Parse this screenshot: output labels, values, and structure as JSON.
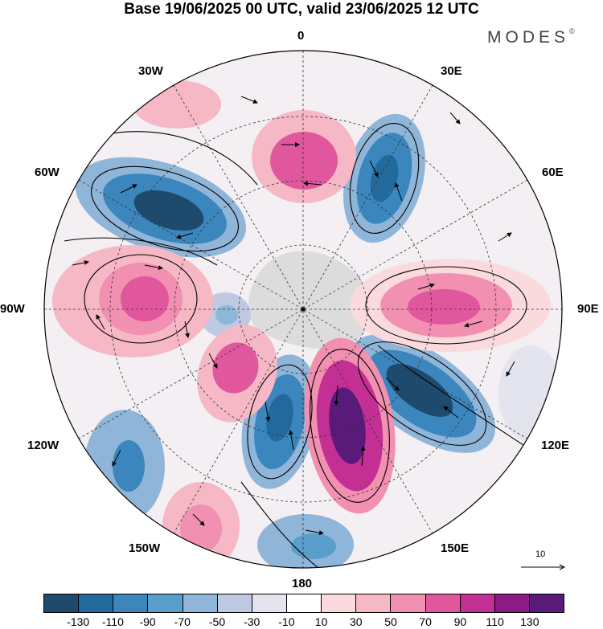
{
  "title": "Base 19/06/2025 00 UTC, valid 23/06/2025 12 UTC",
  "brand": {
    "name": "MODES",
    "mark": "©"
  },
  "longitude_labels": [
    "0",
    "30E",
    "60E",
    "90E",
    "120E",
    "150E",
    "180",
    "150W",
    "120W",
    "90W",
    "60W",
    "30W"
  ],
  "vector_scale_label": "10",
  "colorbar": {
    "colors": [
      "#1e4a6e",
      "#236a9c",
      "#3a86bd",
      "#5a9ecb",
      "#8fb5d9",
      "#bfc9e2",
      "#e4e4ef",
      "#ffffff",
      "#fadadd",
      "#f6b8c4",
      "#f190b0",
      "#e0579e",
      "#c42f93",
      "#8e1a86",
      "#591a7a"
    ],
    "tick_labels": [
      "-130",
      "-110",
      "-90",
      "-70",
      "-50",
      "-30",
      "-10",
      "10",
      "30",
      "50",
      "70",
      "90",
      "110",
      "130"
    ]
  },
  "anomaly_centers": [
    {
      "sign": "negative",
      "level": "-130",
      "region": "60W"
    },
    {
      "sign": "negative",
      "level": "-110",
      "region": "30E"
    },
    {
      "sign": "negative",
      "level": "-130",
      "region": "120E"
    },
    {
      "sign": "negative",
      "level": "-110",
      "region": "165W"
    },
    {
      "sign": "positive",
      "level": "110",
      "region": "165E"
    },
    {
      "sign": "positive",
      "level": "70",
      "region": "0"
    },
    {
      "sign": "positive",
      "level": "90",
      "region": "90E"
    },
    {
      "sign": "positive",
      "level": "90",
      "region": "90W"
    },
    {
      "sign": "positive",
      "level": "70",
      "region": "135W"
    },
    {
      "sign": "positive",
      "level": "70",
      "region": "150W"
    }
  ]
}
